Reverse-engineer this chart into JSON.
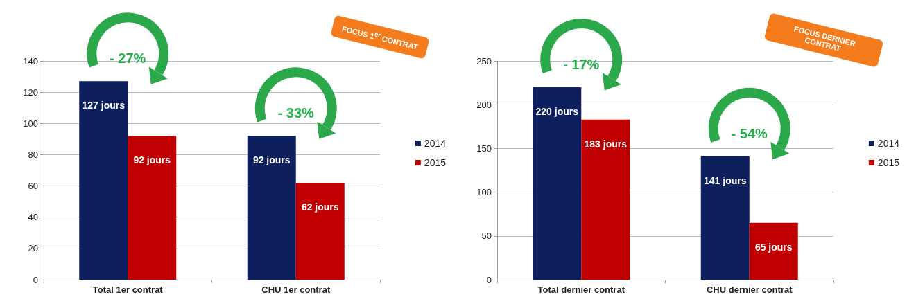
{
  "chart_data": [
    {
      "type": "bar",
      "categories": [
        "Total 1er contrat",
        "CHU 1er contrat"
      ],
      "series": [
        {
          "name": "2014",
          "color": "#0d1f5c",
          "values": [
            127,
            92
          ],
          "value_labels": [
            "127 jours",
            "92 jours"
          ]
        },
        {
          "name": "2015",
          "color": "#c00000",
          "values": [
            92,
            62
          ],
          "value_labels": [
            "92 jours",
            "62 jours"
          ]
        }
      ],
      "ylim": [
        0,
        140
      ],
      "yticks": [
        0,
        20,
        40,
        60,
        80,
        100,
        120,
        140
      ],
      "grid": "y",
      "legend": "right",
      "annotations": [
        {
          "text": "- 27%",
          "x": "Total 1er contrat",
          "y": 127
        },
        {
          "text": "- 33%",
          "x": "CHU 1er contrat",
          "y": 92
        },
        "FOCUS 1$^{er}$ CONTRAT"
      ]
    },
    {
      "type": "bar",
      "categories": [
        "Total dernier contrat",
        "CHU dernier contrat"
      ],
      "series": [
        {
          "name": "2014",
          "color": "#0d1f5c",
          "values": [
            220,
            141
          ],
          "value_labels": [
            "220 jours",
            "141 jours"
          ]
        },
        {
          "name": "2015",
          "color": "#c00000",
          "values": [
            183,
            65
          ],
          "value_labels": [
            "183 jours",
            "65 jours"
          ]
        }
      ],
      "ylim": [
        0,
        250
      ],
      "yticks": [
        0,
        50,
        100,
        150,
        200,
        250
      ],
      "grid": "y",
      "legend": "right",
      "annotations": [
        {
          "text": "- 17%",
          "x": "Total dernier contrat",
          "y": 220
        },
        {
          "text": "- 54%",
          "x": "CHU dernier contrat",
          "y": 141
        },
        "FOCUS DERNIER CONTRAT"
      ]
    }
  ]
}
